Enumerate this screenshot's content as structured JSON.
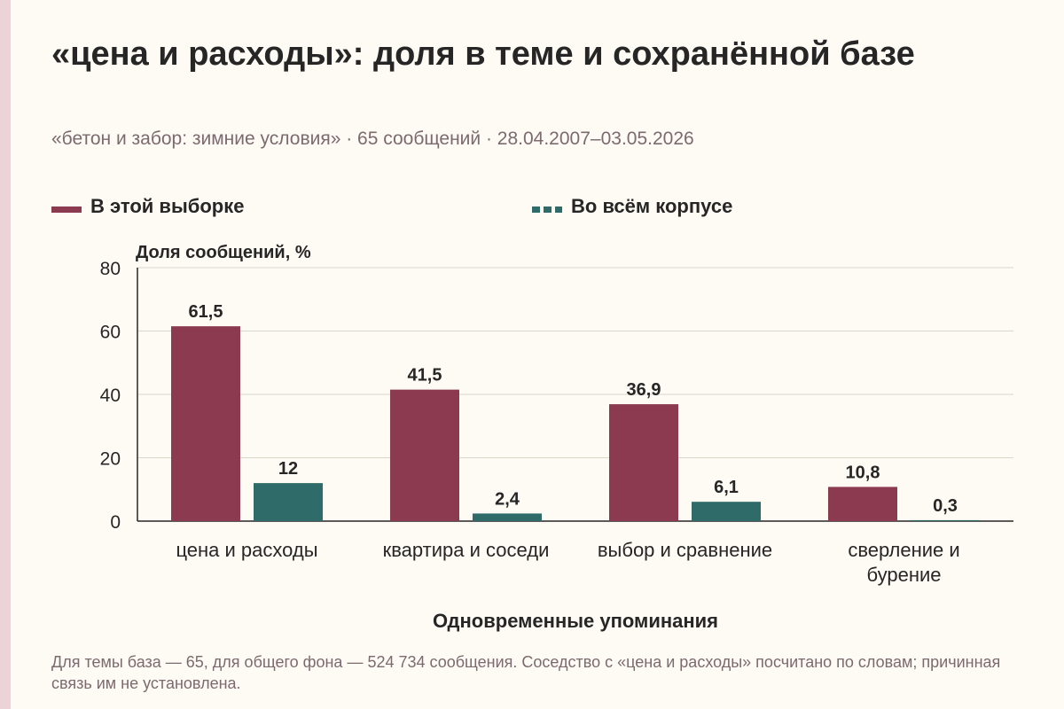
{
  "title": "«цена и расходы»: доля в теме и сохранённой базе",
  "subtitle": "«бетон и забор: зимние условия» · 65 сообщений · 28.04.2007–03.05.2026",
  "footnote": "Для темы база — 65, для общего фона — 524 734 сообщения. Соседство с «цена и расходы» посчитано по словам; причинная связь им не установлена.",
  "chart_data": {
    "type": "bar",
    "ylabel": "Доля сообщений, %",
    "xlabel": "Одновременные упоминания",
    "ylim": [
      0,
      80
    ],
    "yticks": [
      "0",
      "20",
      "40",
      "60",
      "80"
    ],
    "grid": true,
    "legend_position": "top",
    "categories": [
      [
        "цена и расходы"
      ],
      [
        "квартира и соседи"
      ],
      [
        "выбор и сравнение"
      ],
      [
        "сверление и",
        "бурение"
      ]
    ],
    "series": [
      {
        "name": "В этой выборке",
        "color": "#8b3a50",
        "values": [
          61.5,
          41.5,
          36.9,
          10.8
        ],
        "labels": [
          "61,5",
          "41,5",
          "36,9",
          "10,8"
        ]
      },
      {
        "name": "Во всём корпусе",
        "color": "#2f6b68",
        "values": [
          12,
          2.4,
          6.1,
          0.3
        ],
        "labels": [
          "12",
          "2,4",
          "6,1",
          "0,3"
        ]
      }
    ]
  }
}
